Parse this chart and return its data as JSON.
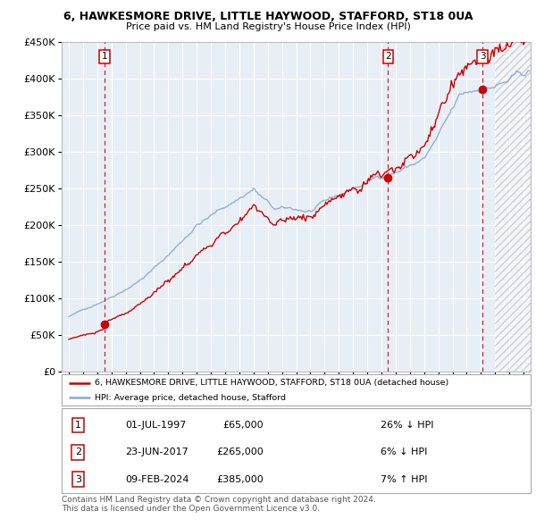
{
  "title_line1": "6, HAWKESMORE DRIVE, LITTLE HAYWOOD, STAFFORD, ST18 0UA",
  "title_line2": "Price paid vs. HM Land Registry's House Price Index (HPI)",
  "ylim": [
    0,
    450000
  ],
  "yticks": [
    0,
    50000,
    100000,
    150000,
    200000,
    250000,
    300000,
    350000,
    400000,
    450000
  ],
  "ytick_labels": [
    "£0",
    "£50K",
    "£100K",
    "£150K",
    "£200K",
    "£250K",
    "£300K",
    "£350K",
    "£400K",
    "£450K"
  ],
  "xlim_start": 1994.5,
  "xlim_end": 2027.5,
  "xticks": [
    1995,
    1996,
    1997,
    1998,
    1999,
    2000,
    2001,
    2002,
    2003,
    2004,
    2005,
    2006,
    2007,
    2008,
    2009,
    2010,
    2011,
    2012,
    2013,
    2014,
    2015,
    2016,
    2017,
    2018,
    2019,
    2020,
    2021,
    2022,
    2023,
    2024,
    2025,
    2026,
    2027
  ],
  "sale_dates": [
    1997.5,
    2017.47,
    2024.11
  ],
  "sale_prices": [
    65000,
    265000,
    385000
  ],
  "sale_labels": [
    "1",
    "2",
    "3"
  ],
  "red_line_color": "#cc0000",
  "blue_line_color": "#88aacc",
  "vline_color": "#cc0000",
  "legend_label_red": "6, HAWKESMORE DRIVE, LITTLE HAYWOOD, STAFFORD, ST18 0UA (detached house)",
  "legend_label_blue": "HPI: Average price, detached house, Stafford",
  "table_rows": [
    [
      "1",
      "01-JUL-1997",
      "£65,000",
      "26% ↓ HPI"
    ],
    [
      "2",
      "23-JUN-2017",
      "£265,000",
      "6% ↓ HPI"
    ],
    [
      "3",
      "09-FEB-2024",
      "£385,000",
      "7% ↑ HPI"
    ]
  ],
  "footnote": "Contains HM Land Registry data © Crown copyright and database right 2024.\nThis data is licensed under the Open Government Licence v3.0.",
  "plot_bg_color": "#e8eef5",
  "future_start": 2025.0
}
